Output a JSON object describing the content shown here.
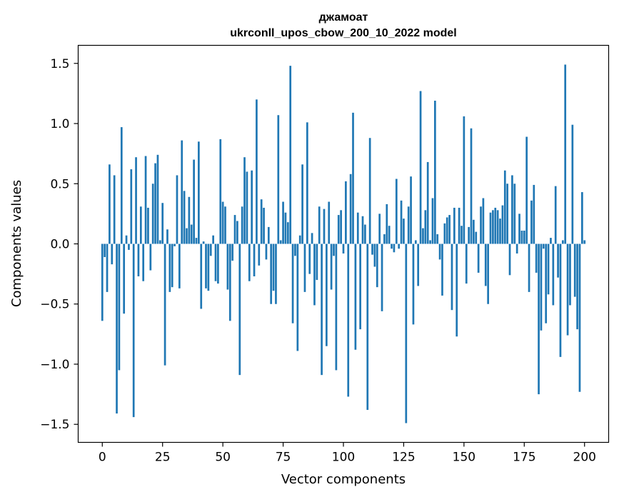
{
  "chart_data": {
    "type": "bar",
    "title": "джамоат",
    "subtitle": "ukrconll_upos_cbow_200_10_2022 model",
    "xlabel": "Vector components",
    "ylabel": "Components values",
    "xlim": [
      -10,
      210
    ],
    "ylim": [
      -1.65,
      1.65
    ],
    "xticks": [
      0,
      25,
      50,
      75,
      100,
      125,
      150,
      175,
      200
    ],
    "yticks": [
      -1.5,
      -1.0,
      -0.5,
      0.0,
      0.5,
      1.0,
      1.5
    ],
    "ytick_labels": [
      "−1.5",
      "−1.0",
      "−0.5",
      "0.0",
      "0.5",
      "1.0",
      "1.5"
    ],
    "grid": false,
    "bar_color": "#1f77b4",
    "values": [
      -0.64,
      -0.11,
      -0.4,
      0.66,
      -0.17,
      0.57,
      -1.41,
      -1.05,
      0.97,
      -0.58,
      0.07,
      -0.05,
      0.62,
      -1.44,
      0.72,
      -0.27,
      0.31,
      -0.31,
      0.73,
      0.3,
      -0.22,
      0.5,
      0.67,
      0.74,
      0.03,
      0.34,
      -1.01,
      0.12,
      -0.4,
      -0.36,
      -0.02,
      0.57,
      -0.37,
      0.86,
      0.44,
      0.13,
      0.39,
      0.16,
      0.7,
      0.05,
      0.85,
      -0.54,
      0.02,
      -0.37,
      -0.39,
      -0.1,
      0.07,
      -0.31,
      -0.33,
      0.87,
      0.35,
      0.31,
      -0.38,
      -0.64,
      -0.14,
      0.24,
      0.19,
      -1.09,
      0.31,
      0.72,
      0.6,
      -0.31,
      0.61,
      -0.27,
      1.2,
      -0.18,
      0.37,
      0.3,
      -0.13,
      0.14,
      -0.5,
      -0.39,
      -0.5,
      1.07,
      0.03,
      0.35,
      0.26,
      0.18,
      1.48,
      -0.66,
      -0.1,
      -0.89,
      0.07,
      0.66,
      -0.4,
      1.01,
      -0.25,
      0.09,
      -0.51,
      -0.3,
      0.31,
      -1.09,
      0.29,
      -0.85,
      0.35,
      -0.38,
      -0.1,
      -1.05,
      0.24,
      0.28,
      -0.08,
      0.52,
      -1.27,
      0.58,
      1.09,
      -0.88,
      0.26,
      -0.71,
      0.23,
      0.16,
      -1.38,
      0.88,
      -0.09,
      -0.19,
      -0.36,
      0.25,
      -0.56,
      0.08,
      0.33,
      0.15,
      -0.04,
      -0.07,
      0.54,
      -0.04,
      0.36,
      0.21,
      -1.49,
      0.31,
      0.56,
      -0.67,
      0.03,
      -0.35,
      1.27,
      0.13,
      0.28,
      0.68,
      0.03,
      0.38,
      1.19,
      0.08,
      -0.13,
      -0.43,
      0.17,
      0.22,
      0.24,
      -0.55,
      0.3,
      -0.77,
      0.3,
      0.15,
      1.06,
      -0.33,
      0.14,
      0.96,
      0.2,
      0.1,
      -0.24,
      0.31,
      0.38,
      -0.35,
      -0.5,
      0.26,
      0.28,
      0.3,
      0.28,
      0.21,
      0.32,
      0.61,
      0.5,
      -0.26,
      0.57,
      0.5,
      -0.08,
      0.25,
      0.11,
      0.11,
      0.89,
      -0.4,
      0.36,
      0.49,
      -0.24,
      -1.25,
      -0.72,
      -0.04,
      -0.66,
      -0.42,
      0.05,
      -0.51,
      0.48,
      -0.28,
      -0.94,
      0.03,
      1.49,
      -0.76,
      -0.51,
      0.99,
      -0.44,
      -0.71,
      -1.23,
      0.43,
      0.03
    ]
  }
}
